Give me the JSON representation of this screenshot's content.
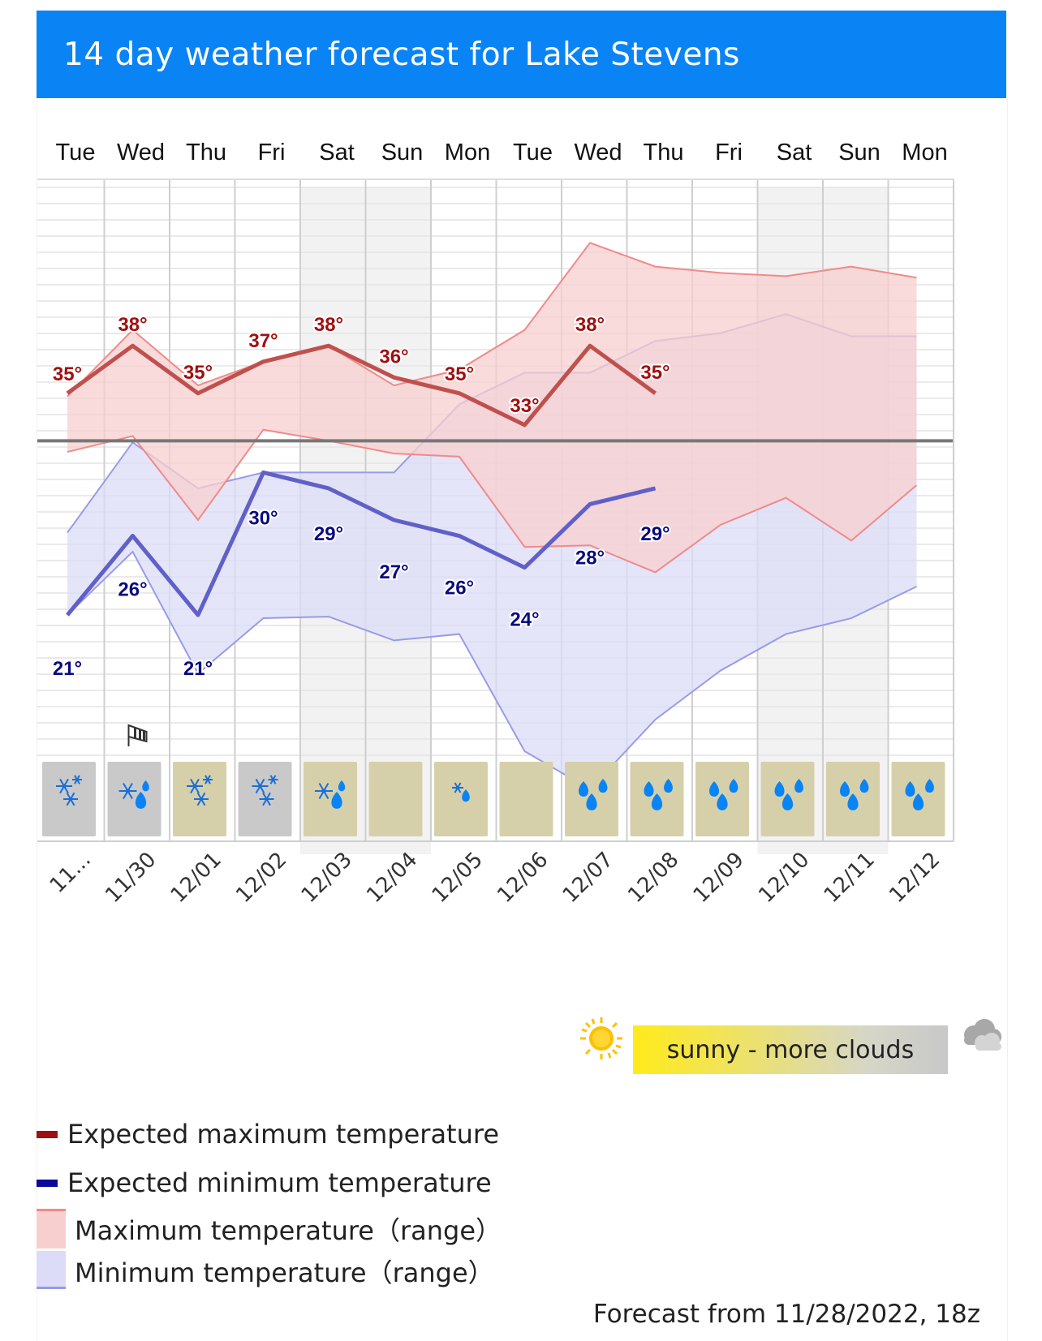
{
  "header": {
    "title": "14 day weather forecast for Lake Stevens"
  },
  "colors": {
    "header_bg": "#0a84f5",
    "max_line": "#c0504d",
    "max_range": "#f7cfcf",
    "max_range_edge": "#f08a8a",
    "min_line": "#6060c8",
    "min_range": "#dcdcf8",
    "min_range_edge": "#9a9ae8",
    "max_label": "#a01010",
    "min_label": "#0a0a80",
    "weekend_shade": "#f2f2f2",
    "zero_line": "#777777"
  },
  "chart_data": {
    "type": "line",
    "days": [
      "Tue",
      "Wed",
      "Thu",
      "Fri",
      "Sat",
      "Sun",
      "Mon",
      "Tue",
      "Wed",
      "Thu",
      "Fri",
      "Sat",
      "Sun",
      "Mon"
    ],
    "dates": [
      "11...",
      "11/30",
      "12/01",
      "12/02",
      "12/03",
      "12/04",
      "12/05",
      "12/06",
      "12/07",
      "12/08",
      "12/09",
      "12/10",
      "12/11",
      "12/12"
    ],
    "weekend_columns": [
      4,
      5,
      11,
      12
    ],
    "y_unit": "°F",
    "ylim": [
      6,
      48
    ],
    "reference_line": 32,
    "series": [
      {
        "name": "Expected maximum temperature",
        "x": [
          0,
          1,
          2,
          3,
          4,
          5,
          6,
          7,
          8,
          9
        ],
        "values": [
          35,
          38,
          35,
          37,
          38,
          36,
          35,
          33,
          38,
          35
        ],
        "labels": [
          "35°",
          "38°",
          "35°",
          "37°",
          "38°",
          "36°",
          "35°",
          "33°",
          "38°",
          "35°"
        ]
      },
      {
        "name": "Expected minimum temperature",
        "x": [
          0,
          1,
          2,
          3,
          4,
          5,
          6,
          7,
          8,
          9
        ],
        "values": [
          21,
          26,
          21,
          30,
          29,
          27,
          26,
          24,
          28,
          29
        ],
        "labels": [
          "21°",
          "26°",
          "21°",
          "30°",
          "29°",
          "27°",
          "26°",
          "24°",
          "28°",
          "29°"
        ]
      }
    ],
    "max_range": {
      "name": "Maximum temperature (range)",
      "x": [
        0,
        1,
        2,
        3,
        4,
        5,
        6,
        7,
        8,
        9,
        10,
        11,
        12,
        13
      ],
      "upper": [
        34.8,
        39,
        35.5,
        37,
        38,
        35.5,
        36.5,
        39,
        44.5,
        43,
        42.6,
        42.4,
        43,
        42.3
      ],
      "lower": [
        31.3,
        32.3,
        27,
        32.7,
        32,
        31.2,
        31,
        25.3,
        25.4,
        23.7,
        26.7,
        28.4,
        25.7,
        29.2
      ]
    },
    "min_range": {
      "name": "Minimum temperature (range)",
      "x": [
        0,
        1,
        2,
        3,
        4,
        5,
        6,
        7,
        8,
        9,
        10,
        11,
        12,
        13
      ],
      "upper": [
        26.2,
        31.9,
        29,
        30,
        30,
        30,
        34.3,
        36.3,
        36.3,
        38.3,
        38.8,
        40,
        38.6,
        38.6
      ],
      "lower": [
        21,
        25,
        17.3,
        20.8,
        20.9,
        19.4,
        19.8,
        12.4,
        10,
        14.4,
        17.5,
        19.8,
        20.8,
        22.8
      ]
    },
    "weather_tiles": [
      {
        "bg": "#c9c9c9",
        "icon": "snow-icon"
      },
      {
        "bg": "#c9c9c9",
        "icon": "snow-rain-icon"
      },
      {
        "bg": "#d6d0aa",
        "icon": "snow-icon"
      },
      {
        "bg": "#c9c9c9",
        "icon": "snow-icon"
      },
      {
        "bg": "#d6d0aa",
        "icon": "snow-rain-icon"
      },
      {
        "bg": "#d6d0aa",
        "icon": ""
      },
      {
        "bg": "#d6d0aa",
        "icon": "light-snow-rain-icon"
      },
      {
        "bg": "#d6d0aa",
        "icon": ""
      },
      {
        "bg": "#d6d0aa",
        "icon": "rain-icon"
      },
      {
        "bg": "#d6d0aa",
        "icon": "rain-icon"
      },
      {
        "bg": "#d6d0aa",
        "icon": "rain-icon"
      },
      {
        "bg": "#d6d0aa",
        "icon": "rain-icon"
      },
      {
        "bg": "#d6d0aa",
        "icon": "rain-icon"
      },
      {
        "bg": "#d6d0aa",
        "icon": "rain-icon"
      }
    ],
    "wind_marker_day": 1
  },
  "cloud_legend": {
    "text": "sunny - more clouds"
  },
  "legend": {
    "max_line": "Expected maximum temperature",
    "min_line": "Expected minimum temperature",
    "max_range": "Maximum temperature（range）",
    "min_range": "Minimum temperature（range）"
  },
  "footnote": "Forecast from 11/28/2022, 18z"
}
